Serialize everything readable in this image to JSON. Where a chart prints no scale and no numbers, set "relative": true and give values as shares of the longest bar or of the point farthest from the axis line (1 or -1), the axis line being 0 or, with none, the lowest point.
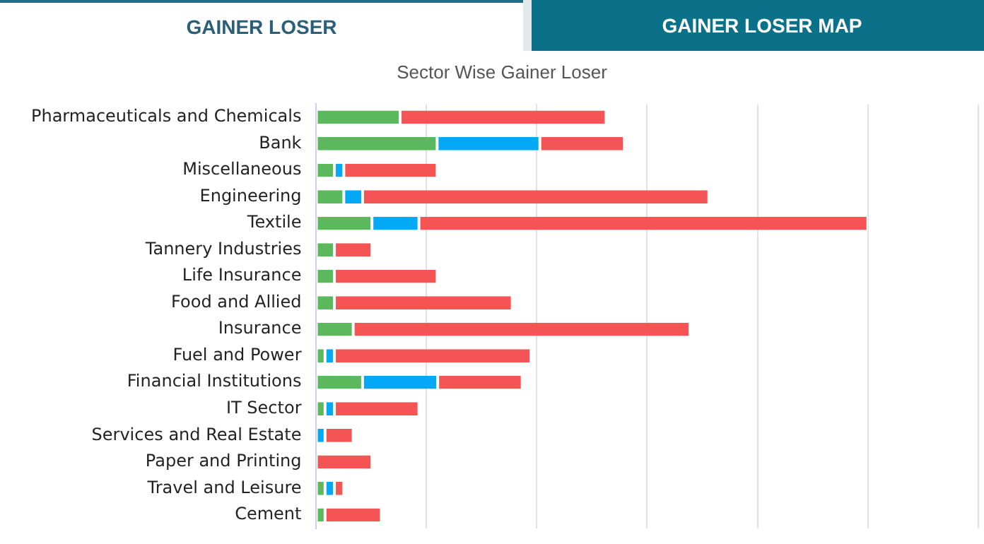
{
  "chart_data": {
    "type": "bar",
    "orientation": "horizontal",
    "stacked": true,
    "relative": true,
    "grid": "x",
    "legend": false,
    "title": "Sector Wise Gainer Loser",
    "annotations": [
      "GAINER LOSER",
      "GAINER LOSER MAP"
    ],
    "categories": [
      "Pharmaceuticals and Chemicals",
      "Bank",
      "Miscellaneous",
      "Engineering",
      "Textile",
      "Tannery Industries",
      "Life Insurance",
      "Food and Allied",
      "Insurance",
      "Fuel and Power",
      "Financial Institutions",
      "IT Sector",
      "Services and Real Estate",
      "Paper and Printing",
      "Travel and Leisure",
      "Cement"
    ],
    "series": [
      {
        "color": "#5cb85c",
        "values": [
          0.153,
          0.22,
          0.034,
          0.051,
          0.102,
          0.034,
          0.034,
          0.034,
          0.068,
          0.017,
          0.085,
          0.017,
          0,
          0,
          0.017,
          0.017
        ]
      },
      {
        "color": "#03a9f4",
        "values": [
          0,
          0.186,
          0.017,
          0.034,
          0.085,
          0,
          0,
          0,
          0,
          0.017,
          0.136,
          0.017,
          0.017,
          0,
          0.017,
          0
        ]
      },
      {
        "color": "#f55454",
        "values": [
          0.373,
          0.153,
          0.169,
          0.627,
          0.813,
          0.068,
          0.186,
          0.322,
          0.61,
          0.356,
          0.153,
          0.153,
          0.051,
          0.102,
          0.017,
          0.102
        ]
      }
    ]
  }
}
